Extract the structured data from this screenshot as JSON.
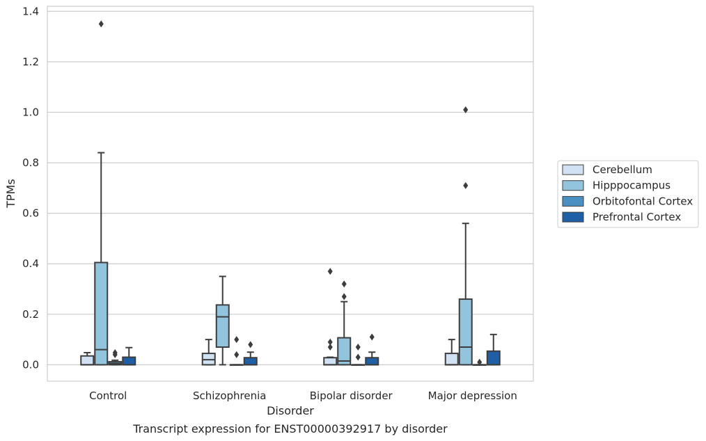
{
  "chart_data": {
    "type": "box",
    "xlabel": "Disorder",
    "ylabel": "TPMs",
    "caption": "Transcript expression for ENST00000392917 by disorder",
    "ylim": [
      -0.065,
      1.42
    ],
    "yticks": [
      "0.0",
      "0.2",
      "0.4",
      "0.6",
      "0.8",
      "1.0",
      "1.2",
      "1.4"
    ],
    "ytick_values": [
      0.0,
      0.2,
      0.4,
      0.6,
      0.8,
      1.0,
      1.2,
      1.4
    ],
    "grid": "horizontal",
    "legend_position": "right",
    "categories": [
      "Control",
      "Schizophrenia",
      "Bipolar disorder",
      "Major depression"
    ],
    "series": [
      {
        "name": "Cerebellum",
        "color": "#cfe1f2",
        "boxes": [
          {
            "category": "Control",
            "whisker_low": 0.0,
            "q1": 0.0,
            "median": 0.0,
            "q3": 0.035,
            "whisker_high": 0.048,
            "outliers": []
          },
          {
            "category": "Schizophrenia",
            "whisker_low": 0.0,
            "q1": 0.0,
            "median": 0.02,
            "q3": 0.045,
            "whisker_high": 0.1,
            "outliers": []
          },
          {
            "category": "Bipolar disorder",
            "whisker_low": 0.0,
            "q1": 0.0,
            "median": 0.0,
            "q3": 0.028,
            "whisker_high": 0.03,
            "outliers": [
              0.07,
              0.09,
              0.37
            ]
          },
          {
            "category": "Major depression",
            "whisker_low": 0.0,
            "q1": 0.0,
            "median": 0.0,
            "q3": 0.045,
            "whisker_high": 0.1,
            "outliers": []
          }
        ]
      },
      {
        "name": "Hipppocampus",
        "color": "#93c4de",
        "boxes": [
          {
            "category": "Control",
            "whisker_low": 0.0,
            "q1": 0.0,
            "median": 0.06,
            "q3": 0.405,
            "whisker_high": 0.84,
            "outliers": [
              1.35
            ]
          },
          {
            "category": "Schizophrenia",
            "whisker_low": 0.0,
            "q1": 0.07,
            "median": 0.19,
            "q3": 0.237,
            "whisker_high": 0.35,
            "outliers": []
          },
          {
            "category": "Bipolar disorder",
            "whisker_low": 0.0,
            "q1": 0.0,
            "median": 0.015,
            "q3": 0.107,
            "whisker_high": 0.25,
            "outliers": [
              0.27,
              0.32
            ]
          },
          {
            "category": "Major depression",
            "whisker_low": 0.0,
            "q1": 0.0,
            "median": 0.07,
            "q3": 0.26,
            "whisker_high": 0.56,
            "outliers": [
              0.71,
              1.01
            ]
          }
        ]
      },
      {
        "name": "Orbitofontal Cortex",
        "color": "#4a90c2",
        "boxes": [
          {
            "category": "Control",
            "whisker_low": 0.0,
            "q1": 0.0,
            "median": 0.005,
            "q3": 0.012,
            "whisker_high": 0.018,
            "outliers": [
              0.04,
              0.048
            ]
          },
          {
            "category": "Schizophrenia",
            "whisker_low": 0.0,
            "q1": 0.0,
            "median": 0.0,
            "q3": 0.0,
            "whisker_high": 0.0,
            "outliers": [
              0.04,
              0.1
            ]
          },
          {
            "category": "Bipolar disorder",
            "whisker_low": 0.0,
            "q1": 0.0,
            "median": 0.0,
            "q3": 0.0,
            "whisker_high": 0.0,
            "outliers": [
              0.03,
              0.07
            ]
          },
          {
            "category": "Major depression",
            "whisker_low": 0.0,
            "q1": 0.0,
            "median": 0.0,
            "q3": 0.0,
            "whisker_high": 0.0,
            "outliers": [
              0.01
            ]
          }
        ]
      },
      {
        "name": "Prefrontal Cortex",
        "color": "#1f5fa5",
        "boxes": [
          {
            "category": "Control",
            "whisker_low": 0.0,
            "q1": 0.0,
            "median": 0.0,
            "q3": 0.03,
            "whisker_high": 0.068,
            "outliers": []
          },
          {
            "category": "Schizophrenia",
            "whisker_low": 0.0,
            "q1": 0.0,
            "median": 0.0,
            "q3": 0.028,
            "whisker_high": 0.05,
            "outliers": [
              0.08
            ]
          },
          {
            "category": "Bipolar disorder",
            "whisker_low": 0.0,
            "q1": 0.0,
            "median": 0.0,
            "q3": 0.028,
            "whisker_high": 0.05,
            "outliers": [
              0.11
            ]
          },
          {
            "category": "Major depression",
            "whisker_low": 0.0,
            "q1": 0.0,
            "median": 0.0,
            "q3": 0.054,
            "whisker_high": 0.12,
            "outliers": []
          }
        ]
      }
    ]
  }
}
